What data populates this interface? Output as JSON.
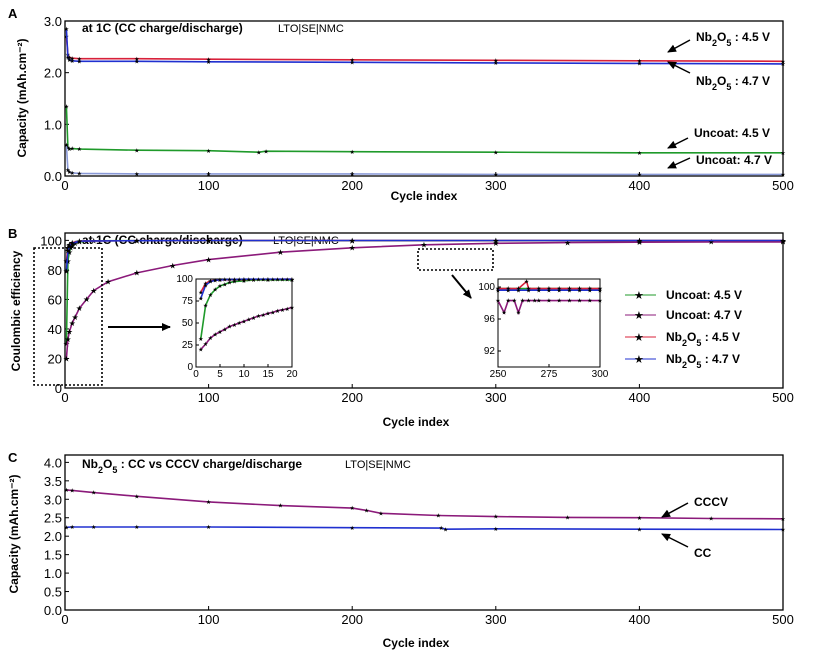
{
  "chart_data": [
    {
      "panel": "A",
      "type": "scatter",
      "title": "at 1C (CC charge/discharge)",
      "subtitle": "LTO|SE|NMC",
      "xlabel": "Cycle index",
      "ylabel": "Capacity (mAh.cm⁻²)",
      "xlim": [
        0,
        500
      ],
      "ylim": [
        0,
        3.0
      ],
      "xticks": [
        "0",
        "100",
        "200",
        "300",
        "400",
        "500"
      ],
      "yticks": [
        "0.0",
        "1.0",
        "2.0",
        "3.0"
      ],
      "series": [
        {
          "name": "Nb2O5 : 4.5 V",
          "color": "#d8203a",
          "x": [
            1,
            2,
            3,
            5,
            10,
            50,
            100,
            200,
            300,
            400,
            500
          ],
          "y": [
            2.7,
            2.35,
            2.3,
            2.28,
            2.27,
            2.27,
            2.26,
            2.25,
            2.24,
            2.23,
            2.22
          ]
        },
        {
          "name": "Nb2O5 : 4.7 V",
          "color": "#2030d0",
          "x": [
            1,
            2,
            3,
            5,
            10,
            50,
            100,
            200,
            300,
            400,
            500
          ],
          "y": [
            2.85,
            2.3,
            2.25,
            2.23,
            2.22,
            2.22,
            2.21,
            2.2,
            2.19,
            2.18,
            2.17
          ]
        },
        {
          "name": "Uncoat: 4.5 V",
          "color": "#1f9a2a",
          "x": [
            1,
            2,
            3,
            5,
            10,
            50,
            100,
            135,
            140,
            200,
            300,
            400,
            500
          ],
          "y": [
            1.35,
            0.55,
            0.52,
            0.53,
            0.52,
            0.5,
            0.49,
            0.46,
            0.48,
            0.47,
            0.46,
            0.45,
            0.45
          ]
        },
        {
          "name": "Uncoat: 4.7 V",
          "color": "#8a9ad8",
          "x": [
            1,
            2,
            3,
            5,
            10,
            50,
            100,
            200,
            300,
            400,
            500
          ],
          "y": [
            0.6,
            0.12,
            0.08,
            0.06,
            0.05,
            0.04,
            0.04,
            0.04,
            0.03,
            0.03,
            0.03
          ]
        }
      ],
      "annotations": [
        {
          "base": "Nb",
          "sub": "2",
          "rest": "O",
          "sub2": "5",
          "tail": " : 4.5 V"
        },
        {
          "base": "Nb",
          "sub": "2",
          "rest": "O",
          "sub2": "5",
          "tail": " : 4.7 V"
        },
        {
          "text": "Uncoat: 4.5 V"
        },
        {
          "text": "Uncoat: 4.7 V"
        }
      ]
    },
    {
      "panel": "B",
      "type": "scatter",
      "title": "at 1C (CC charge/discharge)",
      "subtitle": "LTO|SE|NMC",
      "xlabel": "Cycle index",
      "ylabel": "Coulombic efficiency",
      "xlim": [
        0,
        500
      ],
      "ylim": [
        0,
        105
      ],
      "xticks": [
        "0",
        "100",
        "200",
        "300",
        "400",
        "500"
      ],
      "yticks": [
        "0",
        "20",
        "40",
        "60",
        "80",
        "100"
      ],
      "series": [
        {
          "name": "Uncoat: 4.5 V",
          "color": "#1f9a2a",
          "x": [
            1,
            2,
            3,
            4,
            5,
            7,
            10,
            15,
            20,
            50,
            100,
            200,
            300,
            400,
            500
          ],
          "y": [
            30,
            86,
            92,
            95,
            96,
            98,
            99,
            99.5,
            99.7,
            99.8,
            99.8,
            99.8,
            99.8,
            99.8,
            99.8
          ]
        },
        {
          "name": "Uncoat: 4.7 V",
          "color": "#8b1a7a",
          "x": [
            1,
            2,
            3,
            5,
            7,
            10,
            15,
            20,
            30,
            50,
            75,
            100,
            150,
            200,
            250,
            300,
            350,
            400,
            450,
            500
          ],
          "y": [
            20,
            33,
            38,
            44,
            48,
            54,
            60,
            66,
            72,
            78,
            83,
            87,
            92,
            95,
            97,
            98,
            98.5,
            98.8,
            99,
            99
          ]
        },
        {
          "name": "Nb2O5 : 4.5 V",
          "color": "#d8203a",
          "x": [
            1,
            2,
            3,
            5,
            10,
            50,
            100,
            200,
            300,
            400,
            500
          ],
          "y": [
            86,
            95,
            97,
            98.5,
            99.5,
            99.8,
            99.9,
            99.9,
            99.9,
            99.9,
            99.9
          ]
        },
        {
          "name": "Nb2O5 : 4.7 V",
          "color": "#2030d0",
          "x": [
            1,
            2,
            3,
            5,
            10,
            50,
            100,
            200,
            300,
            400,
            500
          ],
          "y": [
            79,
            93,
            96,
            98,
            99.5,
            99.8,
            99.9,
            99.9,
            99.9,
            99.9,
            99.9
          ]
        }
      ],
      "legend": [
        {
          "text": "Uncoat: 4.5 V"
        },
        {
          "text": "Uncoat: 4.7 V"
        },
        {
          "base": "Nb",
          "sub": "2",
          "rest": "O",
          "sub2": "5",
          "tail": " : 4.5 V"
        },
        {
          "base": "Nb",
          "sub": "2",
          "rest": "O",
          "sub2": "5",
          "tail": " : 4.7 V"
        }
      ],
      "inset_left": {
        "xlim": [
          0,
          20
        ],
        "ylim": [
          0,
          100
        ],
        "xticks": [
          "0",
          "5",
          "10",
          "15",
          "20"
        ],
        "yticks": [
          "0",
          "25",
          "50",
          "75",
          "100"
        ],
        "series": [
          {
            "color": "#1f9a2a",
            "x": [
              1,
              2,
              3,
              4,
              5,
              6,
              7,
              8,
              10,
              12,
              15,
              20
            ],
            "y": [
              32,
              70,
              82,
              88,
              92,
              94,
              96,
              97,
              98,
              99,
              99,
              99
            ]
          },
          {
            "color": "#8b1a7a",
            "x": [
              1,
              2,
              3,
              4,
              5,
              6,
              7,
              8,
              9,
              10,
              11,
              12,
              13,
              14,
              15,
              16,
              17,
              18,
              19,
              20
            ],
            "y": [
              20,
              26,
              33,
              37,
              40,
              43,
              46,
              48,
              50,
              52,
              54,
              56,
              58,
              59,
              61,
              62,
              64,
              65,
              66,
              68
            ]
          },
          {
            "color": "#d8203a",
            "x": [
              1,
              2,
              3,
              5,
              10,
              15,
              20
            ],
            "y": [
              85,
              95,
              98,
              99,
              99.5,
              99.7,
              99.8
            ]
          },
          {
            "color": "#2030d0",
            "x": [
              1,
              2,
              3,
              4,
              5,
              6,
              7,
              8,
              9,
              10,
              11,
              12,
              13,
              14,
              15,
              16,
              17,
              18,
              19,
              20
            ],
            "y": [
              78,
              93,
              97,
              98.5,
              99,
              99.3,
              99.5,
              99.6,
              99.7,
              99.8,
              99.8,
              99.8,
              99.8,
              99.8,
              99.8,
              99.8,
              99.8,
              99.8,
              99.8,
              99.8
            ]
          }
        ]
      },
      "inset_right": {
        "xlim": [
          250,
          300
        ],
        "ylim": [
          90,
          101
        ],
        "xticks": [
          "250",
          "275",
          "300"
        ],
        "yticks": [
          "92",
          "96",
          "100"
        ],
        "series": [
          {
            "color": "#8b1a7a",
            "x": [
              250,
              253,
              255,
              258,
              260,
              262,
              265,
              268,
              270,
              275,
              280,
              285,
              290,
              295,
              300
            ],
            "y": [
              98.3,
              96.8,
              98.3,
              98.3,
              96.8,
              98.3,
              98.3,
              98.3,
              98.3,
              98.3,
              98.3,
              98.3,
              98.3,
              98.3,
              98.3
            ]
          },
          {
            "color": "#1f9a2a",
            "x": [
              250,
              255,
              260,
              265,
              270,
              275,
              280,
              285,
              290,
              295,
              300
            ],
            "y": [
              99.8,
              99.8,
              99.8,
              99.8,
              99.8,
              99.8,
              99.8,
              99.8,
              99.8,
              99.8,
              99.8
            ]
          },
          {
            "color": "#d8203a",
            "x": [
              250,
              255,
              260,
              264,
              265,
              270,
              275,
              280,
              285,
              290,
              295,
              300
            ],
            "y": [
              99.8,
              99.8,
              99.8,
              100.7,
              99.8,
              99.8,
              99.8,
              99.8,
              99.8,
              99.8,
              99.8,
              99.8
            ]
          },
          {
            "color": "#2030d0",
            "x": [
              250,
              255,
              260,
              265,
              270,
              275,
              280,
              285,
              290,
              295,
              300
            ],
            "y": [
              99.6,
              99.6,
              99.6,
              99.6,
              99.6,
              99.6,
              99.6,
              99.6,
              99.6,
              99.6,
              99.6
            ]
          }
        ]
      }
    },
    {
      "panel": "C",
      "type": "scatter",
      "title": {
        "base": "Nb",
        "sub": "2",
        "rest": "O",
        "sub2": "5",
        "tail": " : CC vs CCCV charge/discharge"
      },
      "subtitle": "LTO|SE|NMC",
      "xlabel": "Cycle index",
      "ylabel": "Capacity (mAh.cm⁻²)",
      "xlim": [
        0,
        500
      ],
      "ylim": [
        0,
        4.2
      ],
      "xticks": [
        "0",
        "100",
        "200",
        "300",
        "400",
        "500"
      ],
      "yticks": [
        "0.0",
        "0.5",
        "1.0",
        "1.5",
        "2.0",
        "2.5",
        "3.0",
        "3.5",
        "4.0"
      ],
      "series": [
        {
          "name": "CCCV",
          "color": "#8b1a7a",
          "x": [
            1,
            5,
            20,
            50,
            100,
            150,
            200,
            210,
            220,
            260,
            300,
            350,
            400,
            450,
            500
          ],
          "y": [
            3.25,
            3.24,
            3.18,
            3.08,
            2.93,
            2.83,
            2.76,
            2.7,
            2.62,
            2.56,
            2.53,
            2.51,
            2.5,
            2.48,
            2.47
          ]
        },
        {
          "name": "CC",
          "color": "#2030d0",
          "x": [
            1,
            5,
            20,
            50,
            100,
            200,
            262,
            265,
            300,
            400,
            500
          ],
          "y": [
            2.24,
            2.25,
            2.25,
            2.25,
            2.25,
            2.23,
            2.22,
            2.19,
            2.2,
            2.19,
            2.18
          ]
        }
      ],
      "annotations": [
        {
          "text": "CCCV"
        },
        {
          "text": "CC"
        }
      ]
    }
  ]
}
